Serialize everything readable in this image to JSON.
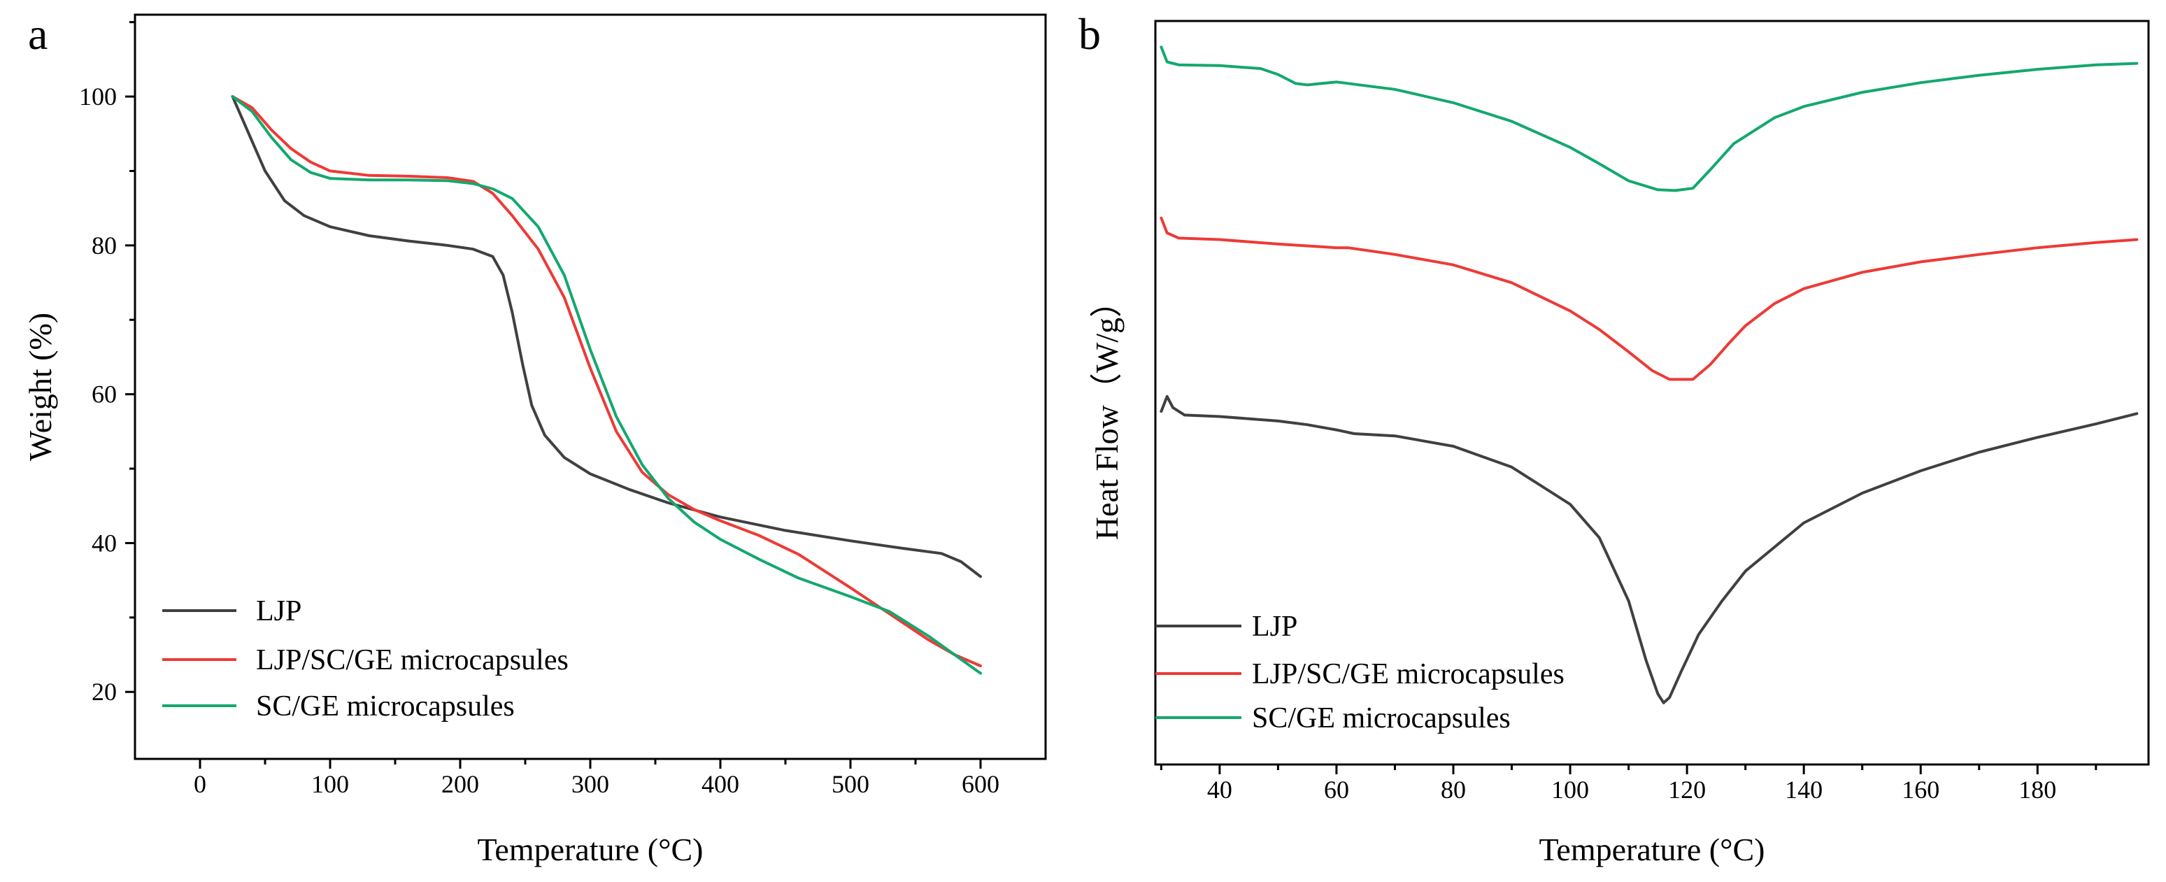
{
  "chart_data": [
    {
      "type": "line",
      "panel_label": "a",
      "title": "",
      "xlabel": "Temperature (°C)",
      "ylabel": "Weight (%)",
      "xlim": [
        -50,
        650
      ],
      "ylim": [
        11,
        111
      ],
      "xticks": [
        0,
        100,
        200,
        300,
        400,
        500,
        600
      ],
      "xtick_labels": [
        "0",
        "100",
        "200",
        "300",
        "400",
        "500",
        "600"
      ],
      "yticks": [
        20,
        40,
        60,
        80,
        100
      ],
      "ytick_labels": [
        "20",
        "40",
        "60",
        "80",
        "100"
      ],
      "grid": false,
      "legend_position": "bottom-left",
      "series": [
        {
          "name": "LJP",
          "color": "#404040",
          "points": [
            [
              25,
              100
            ],
            [
              35,
              96
            ],
            [
              50,
              90
            ],
            [
              65,
              86
            ],
            [
              80,
              84
            ],
            [
              100,
              82.5
            ],
            [
              130,
              81.3
            ],
            [
              160,
              80.6
            ],
            [
              190,
              80
            ],
            [
              210,
              79.5
            ],
            [
              225,
              78.5
            ],
            [
              233,
              76
            ],
            [
              240,
              71
            ],
            [
              248,
              64
            ],
            [
              255,
              58.5
            ],
            [
              265,
              54.5
            ],
            [
              280,
              51.5
            ],
            [
              300,
              49.3
            ],
            [
              330,
              47.2
            ],
            [
              360,
              45.4
            ],
            [
              400,
              43.5
            ],
            [
              450,
              41.7
            ],
            [
              500,
              40.3
            ],
            [
              540,
              39.3
            ],
            [
              570,
              38.6
            ],
            [
              585,
              37.5
            ],
            [
              600,
              35.5
            ]
          ]
        },
        {
          "name": "LJP/SC/GE microcapsules",
          "color": "#ee3a36",
          "points": [
            [
              25,
              100
            ],
            [
              40,
              98.5
            ],
            [
              55,
              95.5
            ],
            [
              70,
              93
            ],
            [
              85,
              91.2
            ],
            [
              100,
              90
            ],
            [
              130,
              89.4
            ],
            [
              160,
              89.3
            ],
            [
              190,
              89.1
            ],
            [
              210,
              88.6
            ],
            [
              225,
              87
            ],
            [
              240,
              84
            ],
            [
              260,
              79.5
            ],
            [
              280,
              73
            ],
            [
              300,
              63.5
            ],
            [
              320,
              55
            ],
            [
              340,
              49.5
            ],
            [
              360,
              46.5
            ],
            [
              380,
              44.5
            ],
            [
              400,
              43
            ],
            [
              430,
              41
            ],
            [
              460,
              38.5
            ],
            [
              500,
              34
            ],
            [
              530,
              30.5
            ],
            [
              560,
              27
            ],
            [
              580,
              25
            ],
            [
              600,
              23.5
            ]
          ]
        },
        {
          "name": "SC/GE microcapsules",
          "color": "#14a86e",
          "points": [
            [
              25,
              100
            ],
            [
              40,
              98
            ],
            [
              55,
              94.5
            ],
            [
              70,
              91.5
            ],
            [
              85,
              89.8
            ],
            [
              100,
              89
            ],
            [
              130,
              88.8
            ],
            [
              160,
              88.8
            ],
            [
              190,
              88.7
            ],
            [
              210,
              88.3
            ],
            [
              225,
              87.6
            ],
            [
              240,
              86.3
            ],
            [
              260,
              82.5
            ],
            [
              280,
              76
            ],
            [
              300,
              66
            ],
            [
              320,
              57
            ],
            [
              340,
              50.5
            ],
            [
              360,
              46
            ],
            [
              380,
              42.8
            ],
            [
              400,
              40.5
            ],
            [
              430,
              37.8
            ],
            [
              460,
              35.3
            ],
            [
              500,
              32.8
            ],
            [
              530,
              30.8
            ],
            [
              560,
              27.5
            ],
            [
              580,
              25
            ],
            [
              600,
              22.5
            ]
          ]
        }
      ]
    },
    {
      "type": "line",
      "panel_label": "b",
      "title": "",
      "xlabel": "Temperature (°C)",
      "ylabel": "Heat Flow（W/g）",
      "xlim": [
        29,
        199
      ],
      "ylim": [
        0,
        100
      ],
      "xticks": [
        40,
        60,
        80,
        100,
        120,
        140,
        160,
        180
      ],
      "xtick_labels": [
        "40",
        "60",
        "80",
        "100",
        "120",
        "140",
        "160",
        "180"
      ],
      "yticks": [],
      "ytick_labels": [],
      "grid": false,
      "legend_position": "bottom-left",
      "series": [
        {
          "name": "LJP",
          "color": "#404040",
          "points": [
            [
              30,
              47.5
            ],
            [
              31,
              49.5
            ],
            [
              32,
              48
            ],
            [
              34,
              47
            ],
            [
              40,
              46.8
            ],
            [
              50,
              46.2
            ],
            [
              55,
              45.7
            ],
            [
              60,
              45
            ],
            [
              63,
              44.5
            ],
            [
              70,
              44.2
            ],
            [
              80,
              42.8
            ],
            [
              90,
              40
            ],
            [
              100,
              35
            ],
            [
              105,
              30.5
            ],
            [
              110,
              22
            ],
            [
              113,
              14
            ],
            [
              115,
              9.5
            ],
            [
              116,
              8.3
            ],
            [
              117,
              9
            ],
            [
              119,
              12.5
            ],
            [
              122,
              17.5
            ],
            [
              126,
              22
            ],
            [
              130,
              26
            ],
            [
              140,
              32.5
            ],
            [
              150,
              36.5
            ],
            [
              160,
              39.5
            ],
            [
              170,
              42
            ],
            [
              180,
              44
            ],
            [
              190,
              45.8
            ],
            [
              197,
              47.2
            ]
          ]
        },
        {
          "name": "LJP/SC/GE microcapsules",
          "color": "#ee3a36",
          "points": [
            [
              30,
              73.5
            ],
            [
              31,
              71.5
            ],
            [
              33,
              70.8
            ],
            [
              40,
              70.6
            ],
            [
              50,
              70
            ],
            [
              60,
              69.5
            ],
            [
              62,
              69.5
            ],
            [
              70,
              68.6
            ],
            [
              80,
              67.2
            ],
            [
              90,
              64.8
            ],
            [
              100,
              61
            ],
            [
              105,
              58.5
            ],
            [
              110,
              55.5
            ],
            [
              114,
              53
            ],
            [
              117,
              51.8
            ],
            [
              121,
              51.8
            ],
            [
              124,
              53.8
            ],
            [
              127,
              56.5
            ],
            [
              130,
              59
            ],
            [
              135,
              62
            ],
            [
              140,
              64
            ],
            [
              150,
              66.2
            ],
            [
              160,
              67.6
            ],
            [
              170,
              68.6
            ],
            [
              180,
              69.5
            ],
            [
              190,
              70.2
            ],
            [
              197,
              70.6
            ]
          ]
        },
        {
          "name": "SC/GE microcapsules",
          "color": "#14a86e",
          "points": [
            [
              30,
              96.5
            ],
            [
              31,
              94.5
            ],
            [
              33,
              94.1
            ],
            [
              40,
              94
            ],
            [
              47,
              93.6
            ],
            [
              50,
              92.8
            ],
            [
              53,
              91.6
            ],
            [
              55,
              91.4
            ],
            [
              60,
              91.8
            ],
            [
              70,
              90.8
            ],
            [
              80,
              89
            ],
            [
              90,
              86.5
            ],
            [
              100,
              83
            ],
            [
              105,
              80.8
            ],
            [
              110,
              78.5
            ],
            [
              115,
              77.3
            ],
            [
              118,
              77.2
            ],
            [
              121,
              77.5
            ],
            [
              124,
              80
            ],
            [
              128,
              83.5
            ],
            [
              135,
              87
            ],
            [
              140,
              88.5
            ],
            [
              150,
              90.4
            ],
            [
              160,
              91.7
            ],
            [
              170,
              92.7
            ],
            [
              180,
              93.5
            ],
            [
              190,
              94.1
            ],
            [
              197,
              94.3
            ]
          ]
        }
      ]
    }
  ]
}
